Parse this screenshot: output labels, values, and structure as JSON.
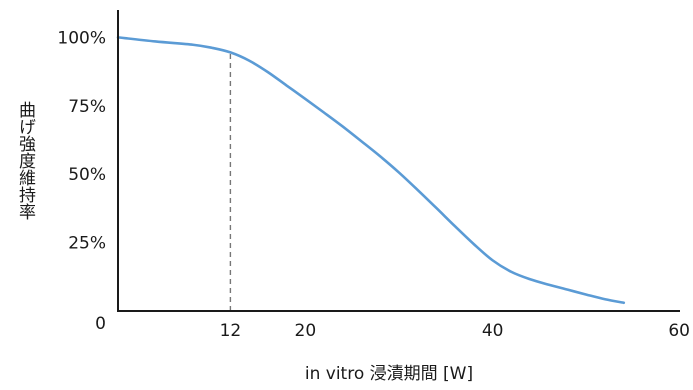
{
  "chart_data": {
    "type": "line",
    "xlabel": "in vitro 浸漬期間 [W]",
    "ylabel": "曲げ強度維持率",
    "xlim": [
      0,
      60
    ],
    "ylim": [
      0,
      110
    ],
    "x_ticks": [
      {
        "value": 12,
        "label": "12"
      },
      {
        "value": 20,
        "label": "20"
      },
      {
        "value": 40,
        "label": "40"
      },
      {
        "value": 60,
        "label": "60"
      }
    ],
    "y_ticks": [
      {
        "value": 0,
        "label": "0"
      },
      {
        "value": 25,
        "label": "25%"
      },
      {
        "value": 50,
        "label": "50%"
      },
      {
        "value": 75,
        "label": "75%"
      },
      {
        "value": 100,
        "label": "100%"
      }
    ],
    "grid": false,
    "legend": "none",
    "series": [
      {
        "color": "#5b9bd5",
        "x": [
          0,
          4,
          8,
          10,
          12,
          14,
          16,
          18,
          20,
          22,
          24,
          26,
          28,
          30,
          32,
          34,
          36,
          38,
          40,
          42,
          44,
          46,
          48,
          50,
          52,
          54
        ],
        "y": [
          100,
          98.5,
          97.3,
          96.2,
          94.5,
          91.5,
          87.3,
          82.4,
          77.5,
          72.5,
          67.4,
          62,
          56.5,
          50.6,
          44.2,
          37.6,
          30.9,
          24.4,
          18.5,
          14.3,
          11.6,
          9.6,
          7.8,
          6,
          4.3,
          3
        ]
      }
    ],
    "reference_lines": [
      {
        "axis": "x",
        "value": 12,
        "from": 0,
        "to": 94.5,
        "style": "dashed",
        "color": "#777777"
      }
    ]
  }
}
